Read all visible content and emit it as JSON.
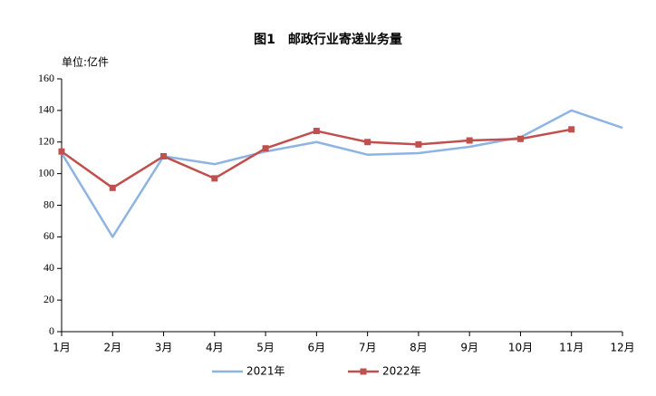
{
  "chart_data": {
    "type": "line",
    "title": "图1　邮政行业寄递业务量",
    "y_axis_label": "单位:亿件",
    "categories": [
      "1月",
      "2月",
      "3月",
      "4月",
      "5月",
      "6月",
      "7月",
      "8月",
      "9月",
      "10月",
      "11月",
      "12月"
    ],
    "series": [
      {
        "name": "2021年",
        "color": "#8db4e2",
        "marker": "none",
        "values": [
          113,
          60,
          111,
          106,
          114,
          120,
          112,
          113,
          117,
          123,
          140,
          129
        ]
      },
      {
        "name": "2022年",
        "color": "#c0504d",
        "marker": "square",
        "values": [
          114,
          91,
          111,
          97,
          116,
          127,
          120,
          118.5,
          121,
          122,
          128,
          null
        ]
      }
    ],
    "ylim": [
      0,
      160
    ],
    "yticks": [
      0,
      20,
      40,
      60,
      80,
      100,
      120,
      140,
      160
    ],
    "grid": false,
    "legend": "bottom"
  }
}
